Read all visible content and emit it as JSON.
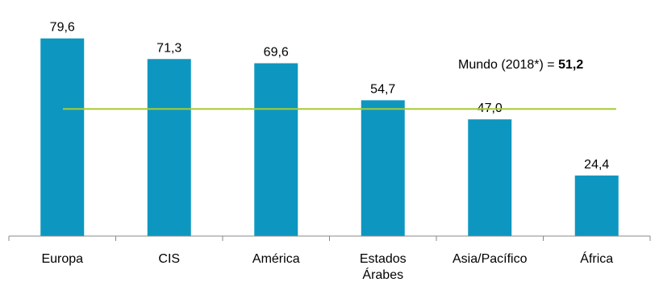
{
  "chart_data": {
    "type": "bar",
    "categories": [
      "Europa",
      "CIS",
      "América",
      "Estados Árabes",
      "Asia/Pacífico",
      "África"
    ],
    "category_lines": [
      [
        "Europa"
      ],
      [
        "CIS"
      ],
      [
        "América"
      ],
      [
        "Estados",
        "Árabes"
      ],
      [
        "Asia/Pacífico"
      ],
      [
        "África"
      ]
    ],
    "values": [
      79.6,
      71.3,
      69.6,
      54.7,
      47.0,
      24.4
    ],
    "value_labels": [
      "79,6",
      "71,3",
      "69,6",
      "54,7",
      "47,0",
      "24,4"
    ],
    "ylim": [
      0,
      91.5
    ],
    "title": "",
    "xlabel": "",
    "ylabel": "",
    "grid": false,
    "colors": {
      "bar": "#0d97c0",
      "reference_line": "#a6cc36",
      "axis": "#888888"
    },
    "reference_line": {
      "value": 51.2,
      "label_prefix": "Mundo (2018*) = ",
      "label_value": "51,2"
    }
  }
}
